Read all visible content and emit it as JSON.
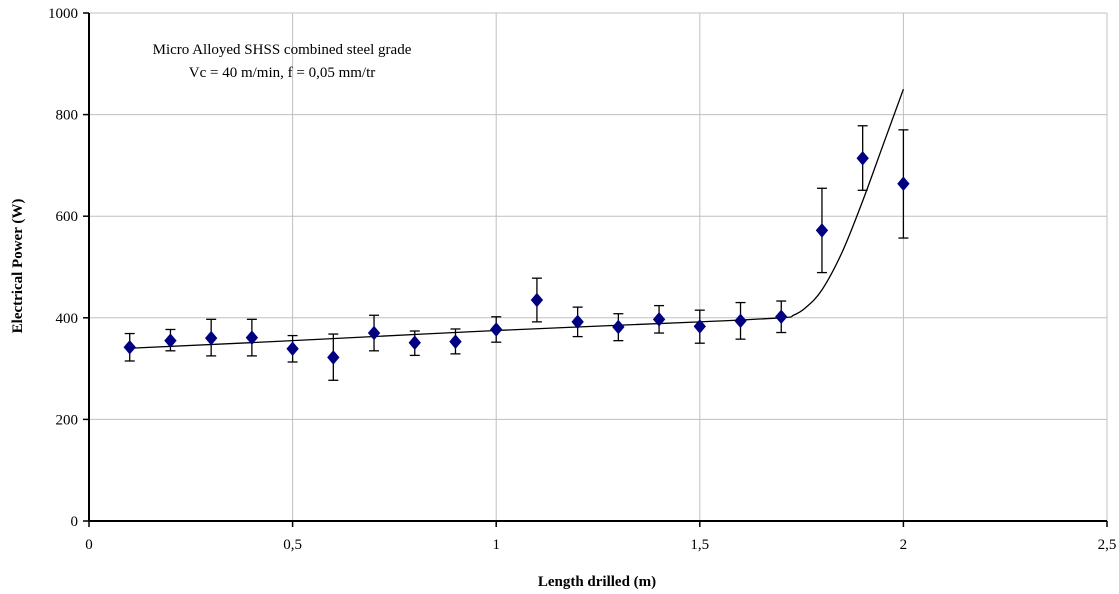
{
  "chart_data": {
    "type": "scatter",
    "title": "",
    "annotation_lines": [
      "Micro Alloyed SHSS combined steel grade",
      "Vc = 40 m/min, f = 0,05 mm/tr"
    ],
    "xlabel": "Length drilled (m)",
    "ylabel": "Electrical Power (W)",
    "xlim": [
      0,
      2.5
    ],
    "ylim": [
      0,
      1000
    ],
    "x_ticks": [
      0,
      0.5,
      1,
      1.5,
      2,
      2.5
    ],
    "x_tick_labels": [
      "0",
      "0,5",
      "1",
      "1,5",
      "2",
      "2,5"
    ],
    "y_ticks": [
      0,
      200,
      400,
      600,
      800,
      1000
    ],
    "y_tick_labels": [
      "0",
      "200",
      "400",
      "600",
      "800",
      "1000"
    ],
    "grid": true,
    "legend": "none",
    "series": [
      {
        "marker": "diamond",
        "color": "#000080",
        "x": [
          0.1,
          0.2,
          0.3,
          0.4,
          0.5,
          0.6,
          0.7,
          0.8,
          0.9,
          1.0,
          1.1,
          1.2,
          1.3,
          1.4,
          1.5,
          1.6,
          1.7,
          1.8,
          1.9,
          2.0
        ],
        "y": [
          342,
          355,
          360,
          361,
          339,
          322,
          370,
          351,
          353,
          377,
          435,
          392,
          382,
          397,
          383,
          394,
          402,
          572,
          714,
          664
        ],
        "error_low": [
          315,
          335,
          325,
          325,
          313,
          277,
          335,
          326,
          329,
          352,
          392,
          363,
          355,
          370,
          350,
          358,
          371,
          489,
          651,
          557
        ],
        "error_high": [
          369,
          377,
          397,
          397,
          365,
          368,
          405,
          374,
          378,
          402,
          478,
          421,
          408,
          424,
          415,
          430,
          433,
          655,
          778,
          770
        ]
      }
    ],
    "trend_line": {
      "color": "#000000",
      "x": [
        0.1,
        0.5,
        1.0,
        1.5,
        1.7,
        1.73,
        1.76,
        1.8,
        1.85,
        1.9,
        1.95,
        2.0
      ],
      "y": [
        340,
        355,
        375,
        392,
        400,
        405,
        420,
        455,
        530,
        630,
        740,
        850
      ]
    }
  }
}
